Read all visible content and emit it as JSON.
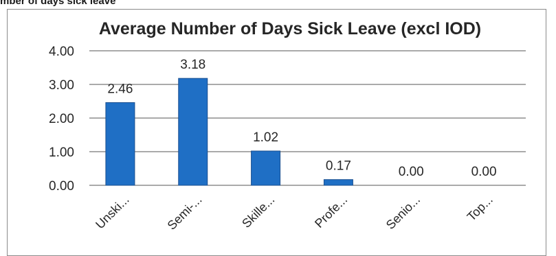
{
  "document": {
    "heading": "mber of days sick leave"
  },
  "chart_data": {
    "type": "bar",
    "title": "Average Number of Days Sick Leave (excl IOD)",
    "categories": [
      "Unski...",
      "Semi-...",
      "Skille...",
      "Profe...",
      "Senio...",
      "Top..."
    ],
    "values": [
      2.46,
      3.18,
      1.02,
      0.17,
      0.0,
      0.0
    ],
    "data_labels": [
      "2.46",
      "3.18",
      "1.02",
      "0.17",
      "0.00",
      "0.00"
    ],
    "y_ticks": [
      "0.00",
      "1.00",
      "2.00",
      "3.00",
      "4.00"
    ],
    "ylim": [
      0,
      4
    ],
    "xlabel": "",
    "ylabel": "",
    "grid": true,
    "legend": "none",
    "bar_color": "#1f6fc5"
  }
}
